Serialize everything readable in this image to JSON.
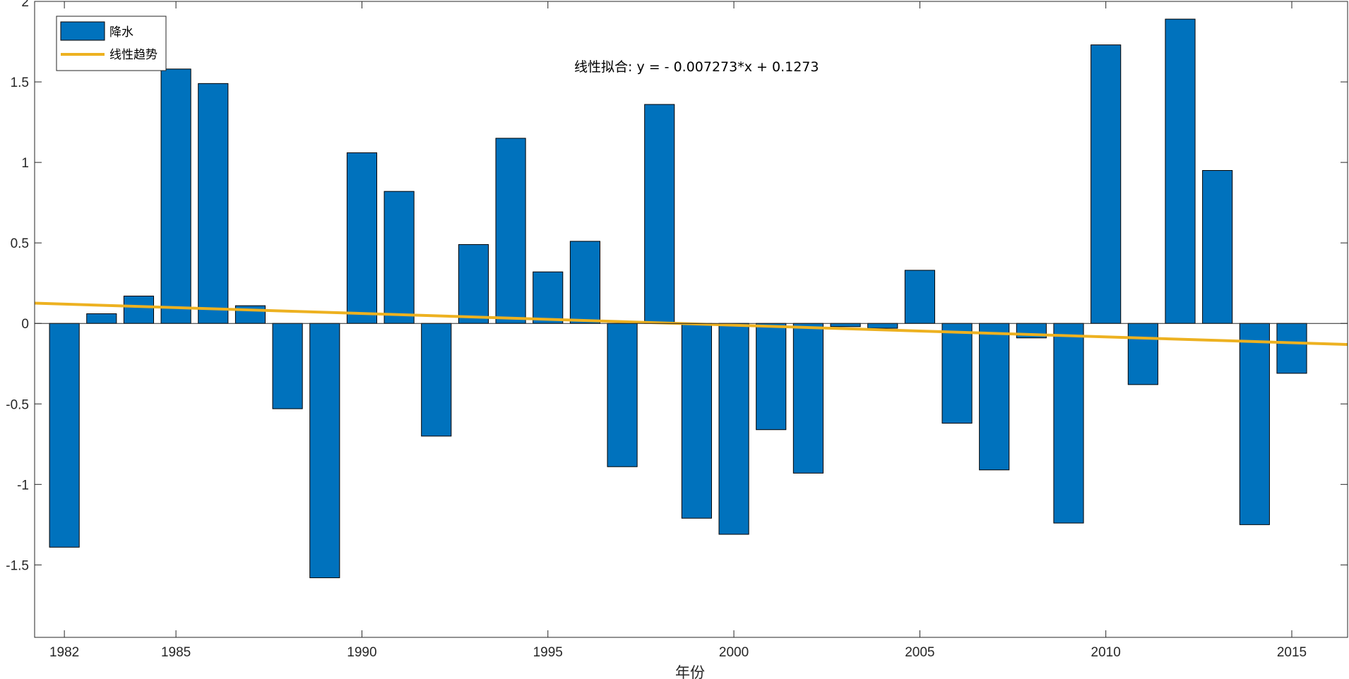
{
  "chart_data": {
    "type": "bar",
    "title": "",
    "xlabel": "年份",
    "ylabel": "",
    "x": [
      1982,
      1983,
      1984,
      1985,
      1986,
      1987,
      1988,
      1989,
      1990,
      1991,
      1992,
      1993,
      1994,
      1995,
      1996,
      1997,
      1998,
      1999,
      2000,
      2001,
      2002,
      2003,
      2004,
      2005,
      2006,
      2007,
      2008,
      2009,
      2010,
      2011,
      2012,
      2013,
      2014,
      2015
    ],
    "series": [
      {
        "name": "降水",
        "type": "bar",
        "color": "#0072BD",
        "values": [
          -1.39,
          0.06,
          0.17,
          1.58,
          1.49,
          0.11,
          -0.53,
          -1.58,
          1.06,
          0.82,
          -0.7,
          0.49,
          1.15,
          0.32,
          0.51,
          -0.89,
          1.36,
          -1.21,
          -1.31,
          -0.66,
          -0.93,
          -0.02,
          -0.03,
          0.33,
          -0.62,
          -0.91,
          -0.09,
          -1.24,
          1.73,
          -0.38,
          1.89,
          0.95,
          -1.25,
          -0.31
        ]
      },
      {
        "name": "线性趋势",
        "type": "line",
        "color": "#EDB120",
        "slope": -0.007273,
        "intercept": 0.1273
      }
    ],
    "annotation": "线性拟合:  y = - 0.007273*x + 0.1273",
    "xticks": [
      "1982",
      "1985",
      "1990",
      "1995",
      "2000",
      "2005",
      "2010",
      "2015"
    ],
    "yticks": [
      "-1.5",
      "-1",
      "-0.5",
      "0",
      "0.5",
      "1",
      "1.5",
      "2"
    ],
    "xlim": [
      1981.2,
      2016.5
    ],
    "ylim": [
      -1.95,
      2
    ],
    "grid": false,
    "legend_position": "top-left"
  }
}
